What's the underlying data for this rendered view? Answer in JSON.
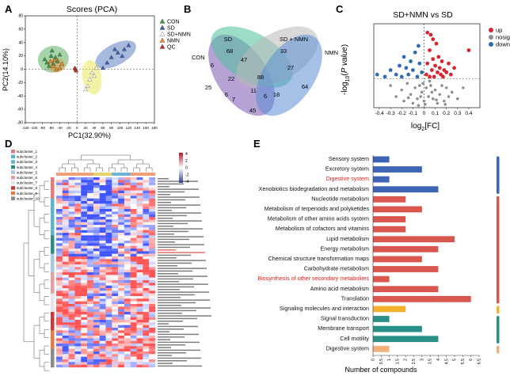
{
  "panels": {
    "A": {
      "letter": "A",
      "chart_data": {
        "type": "scatter",
        "title": "Scores (PCA)",
        "xlabel": "PC1(32.90%)",
        "ylabel": "PC2(14.10%)",
        "xlim": [
          -120,
          180
        ],
        "ylim": [
          -80,
          80
        ],
        "xticks": [
          -120,
          -100,
          -80,
          -60,
          -40,
          -20,
          0,
          20,
          40,
          60,
          80,
          100,
          120,
          140,
          160,
          180
        ],
        "yticks": [
          -80,
          -60,
          -40,
          -20,
          0,
          20,
          40,
          60,
          80
        ],
        "legend_position": "top-right",
        "series": [
          {
            "name": "CON",
            "color": "#3aa043",
            "marker": "triangle",
            "points": [
              [
                -70,
                10
              ],
              [
                -60,
                20
              ],
              [
                -50,
                18
              ],
              [
                -65,
                5
              ],
              [
                -55,
                8
              ],
              [
                -45,
                12
              ],
              [
                -40,
                22
              ],
              [
                -75,
                15
              ],
              [
                -58,
                28
              ]
            ]
          },
          {
            "name": "SD",
            "color": "#3d64b5",
            "marker": "triangle",
            "points": [
              [
                70,
                10
              ],
              [
                80,
                18
              ],
              [
                95,
                25
              ],
              [
                110,
                30
              ],
              [
                120,
                36
              ],
              [
                60,
                2
              ],
              [
                88,
                30
              ],
              [
                105,
                20
              ]
            ]
          },
          {
            "name": "SD+NMN",
            "color": "#e6e23a",
            "marker": "triangle-open",
            "points": [
              [
                25,
                -25
              ],
              [
                30,
                -15
              ],
              [
                40,
                -10
              ],
              [
                35,
                -5
              ],
              [
                45,
                2
              ],
              [
                20,
                -30
              ]
            ]
          },
          {
            "name": "NMN",
            "color": "#f08e2a",
            "marker": "triangle",
            "points": [
              [
                -55,
                5
              ],
              [
                -48,
                0
              ],
              [
                -40,
                2
              ],
              [
                -35,
                8
              ],
              [
                -62,
                12
              ],
              [
                -52,
                14
              ]
            ]
          },
          {
            "name": "QC",
            "color": "#d12a2a",
            "marker": "triangle",
            "points": [
              [
                -5,
                2
              ],
              [
                -3,
                0
              ],
              [
                -2,
                -2
              ]
            ]
          }
        ],
        "ellipses": [
          {
            "group": "CON",
            "color": "#3aa043"
          },
          {
            "group": "SD",
            "color": "#3d64b5"
          },
          {
            "group": "SD+NMN",
            "color": "#e6e23a"
          },
          {
            "group": "NMN",
            "color": "#f08e2a"
          }
        ]
      }
    },
    "B": {
      "letter": "B",
      "chart_data": {
        "type": "venn",
        "sets": [
          {
            "name": "CON",
            "color": "#7a55b0"
          },
          {
            "name": "SD",
            "color": "#4fbf9f"
          },
          {
            "name": "SD + NMN",
            "color": "#b9b9b9"
          },
          {
            "name": "NMN",
            "color": "#5b8ed6"
          }
        ],
        "regions": [
          {
            "sets": [
              "CON"
            ],
            "count": 25
          },
          {
            "sets": [
              "SD"
            ],
            "count": 68
          },
          {
            "sets": [
              "SD + NMN"
            ],
            "count": 33
          },
          {
            "sets": [
              "NMN"
            ],
            "count": 64
          },
          {
            "sets": [
              "CON",
              "SD"
            ],
            "count": 6
          },
          {
            "sets": [
              "SD",
              "SD + NMN"
            ],
            "count": 47
          },
          {
            "sets": [
              "SD + NMN",
              "NMN"
            ],
            "count": 27
          },
          {
            "sets": [
              "CON",
              "NMN"
            ],
            "count": 45
          },
          {
            "sets": [
              "CON",
              "SD",
              "SD + NMN"
            ],
            "count": 22
          },
          {
            "sets": [
              "SD",
              "SD + NMN",
              "NMN"
            ],
            "count": 88
          },
          {
            "sets": [
              "CON",
              "SD",
              "NMN"
            ],
            "count": 7
          },
          {
            "sets": [
              "CON",
              "SD + NMN",
              "NMN"
            ],
            "count": 18
          },
          {
            "sets": [
              "CON",
              "SD",
              "SD + NMN",
              "NMN"
            ],
            "count": 11
          },
          {
            "sets": [
              "CON",
              "SD + NMN"
            ],
            "count": 6
          },
          {
            "sets": [
              "SD",
              "NMN"
            ],
            "count": 6
          }
        ]
      }
    },
    "C": {
      "letter": "C",
      "chart_data": {
        "type": "scatter",
        "title": "SD+NMN  vs SD",
        "xlabel": "log2[FC]",
        "ylabel": "-log10(P value)",
        "xlim": [
          -0.45,
          0.5
        ],
        "ylim": [
          0,
          3.8
        ],
        "xticks": [
          "-0.4",
          "-0.3",
          "-0.2",
          "-0.1",
          "0",
          "0.1",
          "0.2",
          "0.3",
          "0.4"
        ],
        "threshold_p_y": 1.3,
        "series": [
          {
            "name": "up",
            "color": "#d6262e",
            "points": [
              [
                0.02,
                1.5
              ],
              [
                0.03,
                2.0
              ],
              [
                0.05,
                2.6
              ],
              [
                0.06,
                3.3
              ],
              [
                0.07,
                1.7
              ],
              [
                0.08,
                2.2
              ],
              [
                0.09,
                1.4
              ],
              [
                0.1,
                1.9
              ],
              [
                0.11,
                2.9
              ],
              [
                0.12,
                1.6
              ],
              [
                0.13,
                2.3
              ],
              [
                0.14,
                1.8
              ],
              [
                0.15,
                1.5
              ],
              [
                0.16,
                2.1
              ],
              [
                0.17,
                1.4
              ],
              [
                0.18,
                1.7
              ],
              [
                0.2,
                1.6
              ],
              [
                0.22,
                2.0
              ],
              [
                0.24,
                1.5
              ],
              [
                0.27,
                1.8
              ],
              [
                0.4,
                2.6
              ],
              [
                0.08,
                3.1
              ],
              [
                0.05,
                1.4
              ],
              [
                0.03,
                3.4
              ]
            ]
          },
          {
            "name": "nosig",
            "color": "#8f8f8f",
            "points": [
              [
                -0.3,
                1.0
              ],
              [
                -0.25,
                0.5
              ],
              [
                -0.2,
                0.8
              ],
              [
                -0.18,
                0.3
              ],
              [
                -0.15,
                1.1
              ],
              [
                -0.12,
                0.6
              ],
              [
                -0.1,
                0.2
              ],
              [
                -0.08,
                0.9
              ],
              [
                -0.06,
                0.4
              ],
              [
                -0.04,
                1.0
              ],
              [
                -0.02,
                0.7
              ],
              [
                0.0,
                0.3
              ],
              [
                0.02,
                0.9
              ],
              [
                0.04,
                0.5
              ],
              [
                0.06,
                1.0
              ],
              [
                0.08,
                0.4
              ],
              [
                0.1,
                0.8
              ],
              [
                0.12,
                0.2
              ],
              [
                0.14,
                0.6
              ],
              [
                0.16,
                1.0
              ],
              [
                0.18,
                0.3
              ],
              [
                0.2,
                0.9
              ],
              [
                0.22,
                0.5
              ],
              [
                0.25,
                0.7
              ],
              [
                0.3,
                0.4
              ],
              [
                0.35,
                0.9
              ],
              [
                -0.05,
                0.1
              ],
              [
                0.01,
                0.15
              ],
              [
                -0.03,
                0.5
              ],
              [
                0.07,
                0.7
              ],
              [
                0.11,
                0.35
              ],
              [
                -0.14,
                0.45
              ],
              [
                0.19,
                0.15
              ],
              [
                0.05,
                1.2
              ],
              [
                -0.01,
                1.1
              ]
            ]
          },
          {
            "name": "down",
            "color": "#2f6cb3",
            "points": [
              [
                -0.02,
                1.6
              ],
              [
                -0.04,
                2.0
              ],
              [
                -0.06,
                1.4
              ],
              [
                -0.08,
                2.5
              ],
              [
                -0.1,
                1.7
              ],
              [
                -0.12,
                2.1
              ],
              [
                -0.14,
                1.5
              ],
              [
                -0.16,
                1.8
              ],
              [
                -0.18,
                2.3
              ],
              [
                -0.2,
                1.4
              ],
              [
                -0.22,
                1.9
              ],
              [
                -0.25,
                1.5
              ],
              [
                -0.3,
                1.7
              ],
              [
                -0.35,
                1.4
              ],
              [
                -0.42,
                1.5
              ],
              [
                -0.05,
                2.8
              ]
            ]
          }
        ]
      }
    },
    "D": {
      "letter": "D",
      "chart_data": {
        "type": "heatmap",
        "legend_title": "",
        "scale_ticks": [
          "4",
          "2",
          "0",
          "-2",
          "-4"
        ],
        "subclusters": [
          {
            "name": "subcluster_1",
            "color": "#e07b7b"
          },
          {
            "name": "subcluster_2",
            "color": "#5fb3c8"
          },
          {
            "name": "subcluster_3",
            "color": "#5fb3c8"
          },
          {
            "name": "subcluster_4",
            "color": "#2f8b80"
          },
          {
            "name": "subcluster_5",
            "color": "#a9c8e0"
          },
          {
            "name": "subcluster_6",
            "color": "#e0a0a0"
          },
          {
            "name": "subcluster_7",
            "color": "#e6e6e6"
          },
          {
            "name": "subcluster_8",
            "color": "#c23a3a"
          },
          {
            "name": "subcluster_9",
            "color": "#e27a4a"
          },
          {
            "name": "subcluster_10",
            "color": "#8a8a8a"
          }
        ],
        "row_count": 72,
        "column_count": 16
      }
    },
    "E": {
      "letter": "E",
      "chart_data": {
        "type": "bar",
        "orientation": "horizontal",
        "xlabel": "Number of compounds",
        "xlim": [
          0,
          6.5
        ],
        "xticks": [
          "0",
          "0.5",
          "1",
          "1.5",
          "2",
          "2.5",
          "3",
          "3.5",
          "4",
          "4.5",
          "5",
          "5.5",
          "6",
          "6.5"
        ],
        "categories": [
          {
            "label": "Sensory system",
            "value": 1,
            "color": "#3d64b5",
            "label_color": "#111111"
          },
          {
            "label": "Excretory system",
            "value": 3,
            "color": "#3d64b5",
            "label_color": "#111111"
          },
          {
            "label": "Digestive system",
            "value": 1,
            "color": "#3d64b5",
            "label_color": "#e0211f"
          },
          {
            "label": "Xenobiotics biodegradation and metabolism",
            "value": 4,
            "color": "#3d64b5",
            "label_color": "#111111"
          },
          {
            "label": "Nucleotide metabolism",
            "value": 2,
            "color": "#d9574f",
            "label_color": "#111111"
          },
          {
            "label": "Metabolism of terpenoids and polyketides",
            "value": 3,
            "color": "#d9574f",
            "label_color": "#111111"
          },
          {
            "label": "Metabolism of other amino acids system",
            "value": 2,
            "color": "#d9574f",
            "label_color": "#111111"
          },
          {
            "label": "Metabolism of cofactors and vitamins",
            "value": 2,
            "color": "#d9574f",
            "label_color": "#111111"
          },
          {
            "label": "Lipid metabolism",
            "value": 5,
            "color": "#d9574f",
            "label_color": "#111111"
          },
          {
            "label": "Energy metabolism",
            "value": 4,
            "color": "#d9574f",
            "label_color": "#111111"
          },
          {
            "label": "Chemical structure transformation maps",
            "value": 3,
            "color": "#d9574f",
            "label_color": "#111111"
          },
          {
            "label": "Carbohydrate metabolism",
            "value": 4,
            "color": "#d9574f",
            "label_color": "#111111"
          },
          {
            "label": "Biosynthesis of other secondary metabolites",
            "value": 1,
            "color": "#d9574f",
            "label_color": "#e0211f"
          },
          {
            "label": "Amino acid metabolism",
            "value": 4,
            "color": "#d9574f",
            "label_color": "#111111"
          },
          {
            "label": "Translation",
            "value": 6,
            "color": "#d9574f",
            "label_color": "#111111"
          },
          {
            "label": "Signaling molecules and interaction",
            "value": 2,
            "color": "#f2b230",
            "label_color": "#111111"
          },
          {
            "label": "Signal transduction",
            "value": 1,
            "color": "#2a8f87",
            "label_color": "#111111"
          },
          {
            "label": "Membrane transport",
            "value": 3,
            "color": "#2a8f87",
            "label_color": "#111111"
          },
          {
            "label": "Cell motility",
            "value": 4,
            "color": "#2a8f87",
            "label_color": "#111111"
          },
          {
            "label": "Digestive system",
            "value": 1,
            "color": "#f2b07a",
            "label_color": "#111111"
          }
        ]
      }
    }
  }
}
